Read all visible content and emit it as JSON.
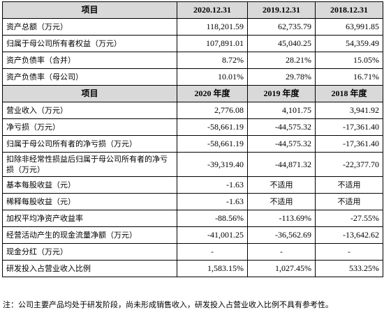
{
  "table": {
    "header1": [
      "项目",
      "2020.12.31",
      "2019.12.31",
      "2018.12.31"
    ],
    "rows1": [
      {
        "label": "资产总额（万元）",
        "values": [
          "118,201.59",
          "62,735.79",
          "63,991.85"
        ]
      },
      {
        "label": "归属于母公司所有者权益（万元）",
        "values": [
          "107,891.01",
          "45,040.25",
          "54,359.49"
        ]
      },
      {
        "label": "资产负债率（合并）",
        "values": [
          "8.72%",
          "28.21%",
          "15.05%"
        ]
      },
      {
        "label": "资产负债率（母公司）",
        "values": [
          "10.01%",
          "29.78%",
          "16.71%"
        ]
      }
    ],
    "header2": [
      "项目",
      "2020 年度",
      "2019 年度",
      "2018 年度"
    ],
    "rows2": [
      {
        "label": "营业收入（万元）",
        "values": [
          "2,776.08",
          "4,101.75",
          "3,941.92"
        ]
      },
      {
        "label": "净亏损（万元）",
        "values": [
          "-58,661.19",
          "-44,575.32",
          "-17,361.40"
        ]
      },
      {
        "label": "归属于母公司所有者的净亏损（万元）",
        "values": [
          "-58,661.19",
          "-44,575.32",
          "-17,361.40"
        ]
      },
      {
        "label": "扣除非经常性损益后归属于母公司所有者的净亏损（万元）",
        "values": [
          "-39,319.40",
          "-44,871.32",
          "-22,377.70"
        ]
      },
      {
        "label": "基本每股收益（元）",
        "values": [
          "-1.63",
          "不适用",
          "不适用"
        ]
      },
      {
        "label": "稀释每股收益（元）",
        "values": [
          "-1.63",
          "不适用",
          "不适用"
        ]
      },
      {
        "label": "加权平均净资产收益率",
        "values": [
          "-88.56%",
          "-113.69%",
          "-27.55%"
        ]
      },
      {
        "label": "经营活动产生的现金流量净额（万元）",
        "values": [
          "-41,001.25",
          "-36,562.69",
          "-13,642.62"
        ]
      },
      {
        "label": "现金分红（万元）",
        "values": [
          "-",
          "-",
          "-"
        ]
      },
      {
        "label": "研发投入占营业收入比例",
        "values": [
          "1,583.15%",
          "1,027.45%",
          "533.25%"
        ]
      }
    ]
  },
  "note": "注：公司主要产品均处于研发阶段，尚未形成销售收入，研发投入占营业收入比例不具有参考性。"
}
